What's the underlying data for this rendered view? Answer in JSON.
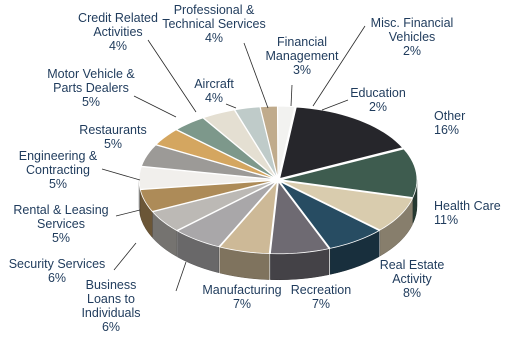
{
  "chart_data": {
    "type": "pie",
    "title": "",
    "style": "3d-exploded",
    "slices": [
      {
        "label": "Other",
        "value": 16,
        "value_label": "16%",
        "color": "#26262b"
      },
      {
        "label": "Health Care",
        "value": 11,
        "value_label": "11%",
        "color": "#3e5c4f"
      },
      {
        "label": "Real Estate Activity",
        "value": 8,
        "value_label": "8%",
        "color": "#d9ccae"
      },
      {
        "label": "Recreation",
        "value": 7,
        "value_label": "7%",
        "color": "#274c62"
      },
      {
        "label": "Manufacturing",
        "value": 7,
        "value_label": "7%",
        "color": "#6e6a72"
      },
      {
        "label": "Business Loans to Individuals",
        "value": 6,
        "value_label": "6%",
        "color": "#cdb997"
      },
      {
        "label": "Security Services",
        "value": 6,
        "value_label": "6%",
        "color": "#a9a7a9"
      },
      {
        "label": "Rental & Leasing Services",
        "value": 5,
        "value_label": "5%",
        "color": "#bcb9b5"
      },
      {
        "label": "Engineering & Contracting",
        "value": 5,
        "value_label": "5%",
        "color": "#ad8b58"
      },
      {
        "label": "Restaurants",
        "value": 5,
        "value_label": "5%",
        "color": "#f1efec"
      },
      {
        "label": "Motor Vehicle & Parts Dealers",
        "value": 5,
        "value_label": "5%",
        "color": "#9c9a97"
      },
      {
        "label": "Credit Related Activities",
        "value": 4,
        "value_label": "4%",
        "color": "#d4a660"
      },
      {
        "label": "Aircraft",
        "value": 4,
        "value_label": "4%",
        "color": "#7d988b"
      },
      {
        "label": "Professional & Technical Services",
        "value": 4,
        "value_label": "4%",
        "color": "#e4dfd2"
      },
      {
        "label": "Financial Management",
        "value": 3,
        "value_label": "3%",
        "color": "#bfcbc9"
      },
      {
        "label": "Misc. Financial Vehicles",
        "value": 2,
        "value_label": "2%",
        "color": "#c0ab8c"
      },
      {
        "label": "Education",
        "value": 2,
        "value_label": "2%",
        "color": "#f2f2f0"
      }
    ],
    "legend": "none",
    "label_style": "callouts"
  }
}
